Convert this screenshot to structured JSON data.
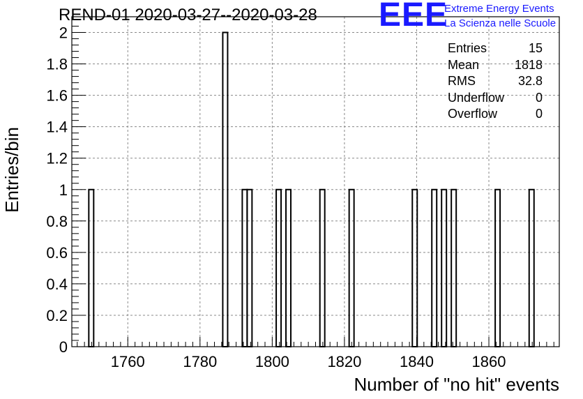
{
  "chart_data": {
    "type": "bar",
    "title": "REND-01 2020-03-27--2020-03-28",
    "xlabel": "Number of \"no hit\" events",
    "ylabel": "Entries/bin",
    "xlim": [
      1744.5,
      1879.5
    ],
    "ylim": [
      0,
      2.1
    ],
    "bin_width": 1.35,
    "x_ticks": [
      "1760",
      "1780",
      "1800",
      "1820",
      "1840",
      "1860"
    ],
    "y_ticks": [
      "0",
      "0.2",
      "0.4",
      "0.6",
      "0.8",
      "1",
      "1.2",
      "1.4",
      "1.6",
      "1.8",
      "2"
    ],
    "grid": true,
    "bins": [
      {
        "x_low": 1749.2,
        "count": 1
      },
      {
        "x_low": 1786.3,
        "count": 2
      },
      {
        "x_low": 1791.7,
        "count": 1
      },
      {
        "x_low": 1793.05,
        "count": 1
      },
      {
        "x_low": 1801.1,
        "count": 1
      },
      {
        "x_low": 1803.8,
        "count": 1
      },
      {
        "x_low": 1813.2,
        "count": 1
      },
      {
        "x_low": 1821.3,
        "count": 1
      },
      {
        "x_low": 1838.8,
        "count": 1
      },
      {
        "x_low": 1844.2,
        "count": 1
      },
      {
        "x_low": 1846.9,
        "count": 1
      },
      {
        "x_low": 1849.6,
        "count": 1
      },
      {
        "x_low": 1861.75,
        "count": 1
      },
      {
        "x_low": 1871.15,
        "count": 1
      }
    ]
  },
  "stats": {
    "entries_label": "Entries",
    "entries_value": "15",
    "mean_label": "Mean",
    "mean_value": "1818",
    "rms_label": "RMS",
    "rms_value": "32.8",
    "underflow_label": "Underflow",
    "underflow_value": "0",
    "overflow_label": "Overflow",
    "overflow_value": "0"
  },
  "logo": {
    "mark": "EEE",
    "line1": "Extreme Energy Events",
    "line2": "La Scienza nelle Scuole",
    "color": "#1a1aff"
  }
}
